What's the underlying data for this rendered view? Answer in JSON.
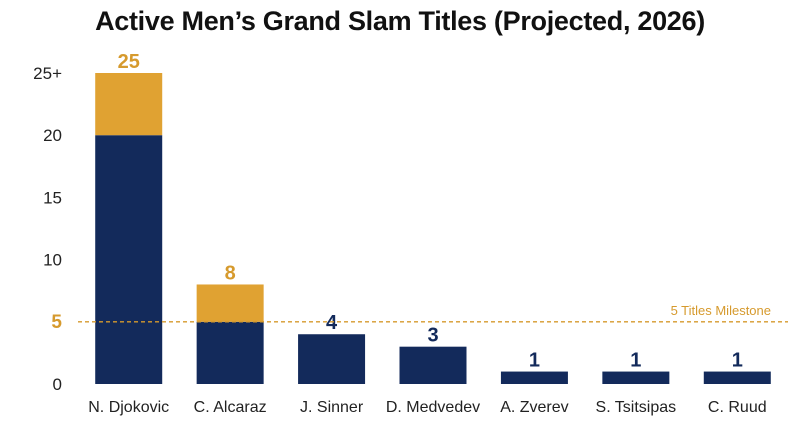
{
  "chart_data": {
    "type": "bar",
    "title": "Active Men’s Grand Slam Titles (Projected, 2026)",
    "xlabel": "",
    "ylabel": "",
    "categories": [
      "N. Djokovic",
      "C. Alcaraz",
      "J. Sinner",
      "D. Medvedev",
      "A. Zverev",
      "S. Tsitsipas",
      "C. Ruud"
    ],
    "series": [
      {
        "values": [
          20,
          5,
          4,
          3,
          1,
          1,
          1
        ],
        "color": "#132a5b"
      },
      {
        "values": [
          5,
          3,
          0,
          0,
          0,
          0,
          0
        ],
        "color": "#e0a232"
      }
    ],
    "data_labels": [
      "25",
      "8",
      "4",
      "3",
      "1",
      "1",
      "1"
    ],
    "data_label_colors": [
      "#d69a2d",
      "#d69a2d",
      "#132a5b",
      "#132a5b",
      "#132a5b",
      "#132a5b",
      "#132a5b"
    ],
    "yticks": [
      0,
      5,
      10,
      15,
      20,
      25
    ],
    "ytick_labels": [
      "0",
      "5",
      "10",
      "15",
      "20",
      "25+"
    ],
    "ylim": [
      0,
      25
    ],
    "grid": false,
    "reference_line": {
      "value": 5,
      "label": "5 Titles Milestone",
      "color": "#d69a2d",
      "style": "dashed"
    }
  }
}
